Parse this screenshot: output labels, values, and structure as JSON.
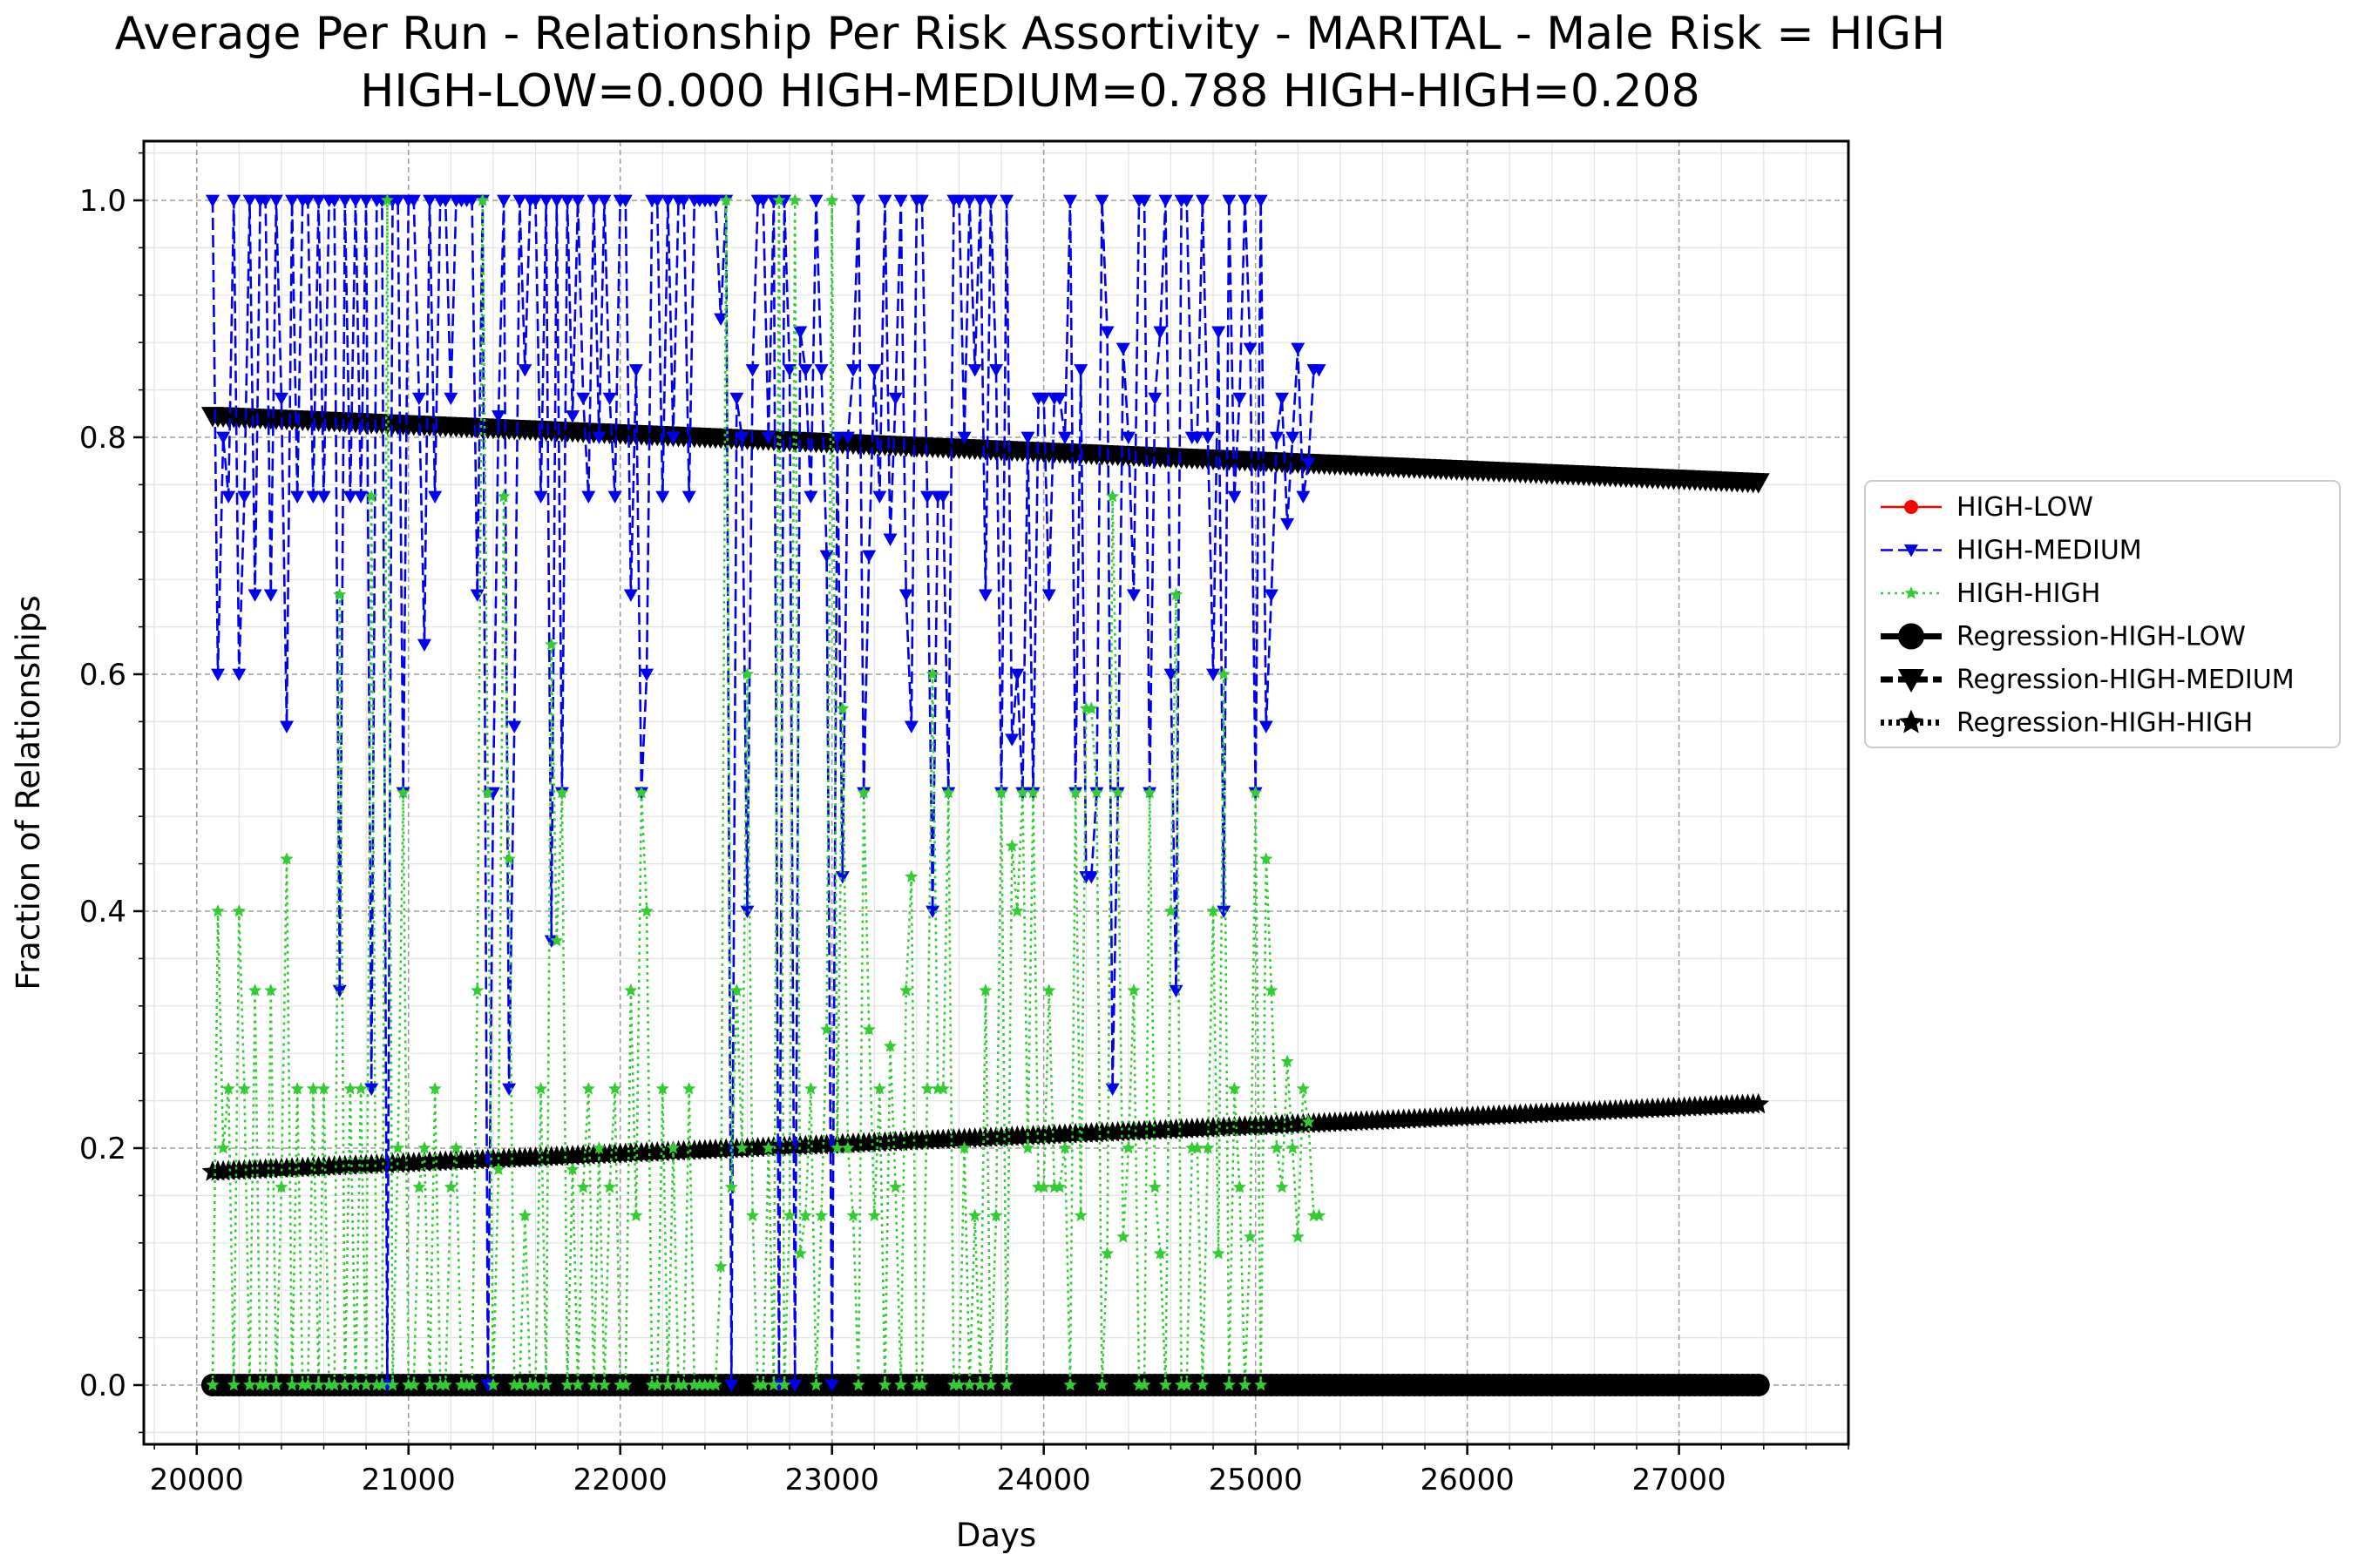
{
  "chart_data": {
    "type": "line",
    "title": "Average Per Run - Relationship Per Risk Assortivity - MARITAL - Male Risk = HIGH",
    "subtitle": "HIGH-LOW=0.000 HIGH-MEDIUM=0.788 HIGH-HIGH=0.208",
    "xlabel": "Days",
    "ylabel": "Fraction of Relationships",
    "xlim": [
      19750,
      27800
    ],
    "ylim": [
      -0.05,
      1.05
    ],
    "xticks": [
      "20000",
      "21000",
      "22000",
      "23000",
      "24000",
      "25000",
      "26000",
      "27000"
    ],
    "yticks": [
      "0.0",
      "0.2",
      "0.4",
      "0.6",
      "0.8",
      "1.0"
    ],
    "grid": true,
    "legend_position": "outside-right",
    "x_start": 20075,
    "x_step": 25,
    "series": [
      {
        "name": "HIGH-LOW",
        "color": "#ff0000",
        "style": "solid",
        "marker": "circle",
        "values": []
      },
      {
        "name": "HIGH-MEDIUM",
        "color": "#0000ee",
        "style": "dashed",
        "marker": "triangle-down",
        "values": [
          1.0,
          0.6,
          0.8,
          0.75,
          1.0,
          0.6,
          0.75,
          1.0,
          0.667,
          1.0,
          1.0,
          0.667,
          1.0,
          0.833,
          0.556,
          1.0,
          0.75,
          1.0,
          1.0,
          0.75,
          1.0,
          0.75,
          1.0,
          1.0,
          0.333,
          1.0,
          0.75,
          1.0,
          0.75,
          1.0,
          0.25,
          1.0,
          1.0,
          0.0,
          1.0,
          1.0,
          0.5,
          1.0,
          1.0,
          0.833,
          0.625,
          1.0,
          0.75,
          1.0,
          1.0,
          0.833,
          1.0,
          1.0,
          1.0,
          1.0,
          0.667,
          1.0,
          0.0,
          0.5,
          0.818,
          1.0,
          0.25,
          0.556,
          1.0,
          0.857,
          1.0,
          1.0,
          0.75,
          1.0,
          0.375,
          1.0,
          0.5,
          1.0,
          0.818,
          1.0,
          0.833,
          0.75,
          1.0,
          0.8,
          1.0,
          0.833,
          0.75,
          1.0,
          1.0,
          0.667,
          0.857,
          0.5,
          0.6,
          1.0,
          1.0,
          0.75,
          1.0,
          0.8,
          1.0,
          1.0,
          0.75,
          1.0,
          1.0,
          1.0,
          1.0,
          1.0,
          0.9,
          1.0,
          0.0,
          0.833,
          0.8,
          0.4,
          0.857,
          1.0,
          1.0,
          0.8,
          1.0,
          0.0,
          1.0,
          0.857,
          0.0,
          0.889,
          0.857,
          0.75,
          1.0,
          0.857,
          0.7,
          0.0,
          0.8,
          0.429,
          0.8,
          0.857,
          1.0,
          0.5,
          0.7,
          0.857,
          0.75,
          1.0,
          0.714,
          0.833,
          1.0,
          0.667,
          0.556,
          1.0,
          1.0,
          0.75,
          0.4,
          0.75,
          0.75,
          0.5,
          1.0,
          1.0,
          0.8,
          1.0,
          0.857,
          1.0,
          0.667,
          1.0,
          0.857,
          0.5,
          1.0,
          0.545,
          0.6,
          0.5,
          0.8,
          0.5,
          0.833,
          0.833,
          0.667,
          0.833,
          0.833,
          0.8,
          1.0,
          0.5,
          0.857,
          0.429,
          0.429,
          0.5,
          1.0,
          0.889,
          0.25,
          0.5,
          0.875,
          0.8,
          0.667,
          1.0,
          1.0,
          0.5,
          0.833,
          0.889,
          1.0,
          0.6,
          0.333,
          1.0,
          1.0,
          0.8,
          0.8,
          1.0,
          0.8,
          0.6,
          0.889,
          0.4,
          1.0,
          0.75,
          0.833,
          1.0,
          0.875,
          0.5,
          1.0,
          0.556,
          0.667,
          0.8,
          0.833,
          0.727,
          0.8,
          0.875,
          0.75,
          0.778,
          0.857,
          0.857
        ]
      },
      {
        "name": "HIGH-HIGH",
        "color": "#33cc33",
        "style": "dotted",
        "marker": "star",
        "values": [
          0.0,
          0.4,
          0.2,
          0.25,
          0.0,
          0.4,
          0.25,
          0.0,
          0.333,
          0.0,
          0.0,
          0.333,
          0.0,
          0.167,
          0.444,
          0.0,
          0.25,
          0.0,
          0.0,
          0.25,
          0.0,
          0.25,
          0.0,
          0.0,
          0.667,
          0.0,
          0.25,
          0.0,
          0.25,
          0.0,
          0.75,
          0.0,
          0.0,
          1.0,
          0.0,
          0.2,
          0.5,
          0.0,
          0.0,
          0.167,
          0.2,
          0.0,
          0.25,
          0.0,
          0.0,
          0.167,
          0.2,
          0.0,
          0.0,
          0.0,
          0.333,
          1.0,
          0.5,
          0.0,
          0.182,
          0.75,
          0.444,
          0.0,
          0.0,
          0.143,
          0.0,
          0.0,
          0.25,
          0.0,
          0.625,
          0.375,
          0.5,
          0.0,
          0.182,
          0.0,
          0.167,
          0.25,
          0.0,
          0.2,
          0.0,
          0.167,
          0.25,
          0.0,
          0.0,
          0.333,
          0.143,
          0.5,
          0.4,
          0.0,
          0.0,
          0.25,
          0.0,
          0.2,
          0.0,
          0.0,
          0.25,
          0.0,
          0.0,
          0.0,
          0.0,
          0.0,
          0.1,
          1.0,
          0.167,
          0.333,
          0.2,
          0.6,
          0.143,
          0.0,
          0.0,
          0.2,
          0.0,
          1.0,
          0.0,
          0.143,
          1.0,
          0.111,
          0.143,
          0.25,
          0.0,
          0.143,
          0.3,
          1.0,
          0.2,
          0.571,
          0.2,
          0.143,
          0.0,
          0.5,
          0.3,
          0.143,
          0.25,
          0.0,
          0.286,
          0.167,
          0.0,
          0.333,
          0.429,
          0.0,
          0.0,
          0.25,
          0.6,
          0.25,
          0.25,
          0.5,
          0.0,
          0.0,
          0.2,
          0.0,
          0.143,
          0.0,
          0.333,
          0.0,
          0.143,
          0.5,
          0.0,
          0.455,
          0.4,
          0.5,
          0.2,
          0.5,
          0.167,
          0.167,
          0.333,
          0.167,
          0.167,
          0.2,
          0.0,
          0.5,
          0.143,
          0.571,
          0.571,
          0.5,
          0.0,
          0.111,
          0.75,
          0.5,
          0.125,
          0.2,
          0.333,
          0.0,
          0.0,
          0.5,
          0.167,
          0.111,
          0.0,
          0.4,
          0.667,
          0.0,
          0.0,
          0.2,
          0.2,
          0.0,
          0.2,
          0.4,
          0.111,
          0.6,
          0.0,
          0.25,
          0.167,
          0.0,
          0.125,
          0.5,
          0.0,
          0.444,
          0.333,
          0.2,
          0.167,
          0.273,
          0.2,
          0.125,
          0.25,
          0.222,
          0.143,
          0.143
        ]
      },
      {
        "name": "Regression-HIGH-LOW",
        "color": "#000000",
        "style": "solid",
        "marker": "circle",
        "line": [
          [
            20075,
            0.0
          ],
          [
            27375,
            0.0
          ]
        ]
      },
      {
        "name": "Regression-HIGH-MEDIUM",
        "color": "#000000",
        "style": "dashed",
        "marker": "triangle-down",
        "line": [
          [
            20075,
            0.818
          ],
          [
            27375,
            0.762
          ]
        ]
      },
      {
        "name": "Regression-HIGH-HIGH",
        "color": "#000000",
        "style": "dotted",
        "marker": "star",
        "line": [
          [
            20075,
            0.18
          ],
          [
            27375,
            0.237
          ]
        ]
      }
    ]
  }
}
